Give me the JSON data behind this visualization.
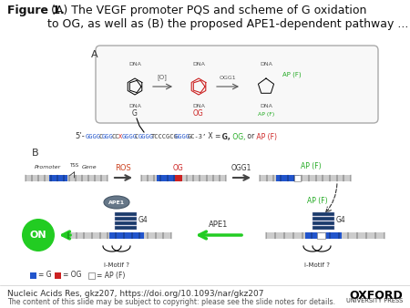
{
  "title_bold": "Figure 1.",
  "title_normal": " (A) The VEGF promoter PQS and scheme of G oxidation\nto OG, as well as (B) the proposed APE1-dependent pathway ...",
  "footer_left_line1": "Nucleic Acids Res, gkz207, https://doi.org/10.1093/nar/gkz207",
  "footer_left_line2": "The content of this slide may be subject to copyright: please see the slide notes for details.",
  "footer_right_line1": "OXFORD",
  "footer_right_line2": "UNIVERSITY PRESS",
  "bg_color": "#ffffff",
  "label_A": "A",
  "label_B": "B",
  "label_OG": "OG",
  "label_AP_F_top": "AP (F)",
  "label_AP_F_mid": "AP (F)",
  "label_G4_1": "G4",
  "label_G4_2": "G4",
  "label_APE1_enzyme": "APE1",
  "label_ON": "ON",
  "label_iMotif1": "i-Motif ?",
  "label_iMotif2": "i-Motif ?",
  "dna_blue_color": "#2255cc",
  "dna_red_color": "#cc2222",
  "g4_color": "#1a3a6b",
  "on_green": "#22cc22",
  "arrow_green": "#22cc22",
  "ape1_gray": "#778899",
  "box_bg": "#f8f8f8",
  "box_edge": "#aaaaaa",
  "title_fontsize": 9,
  "footer_fontsize": 6.5
}
